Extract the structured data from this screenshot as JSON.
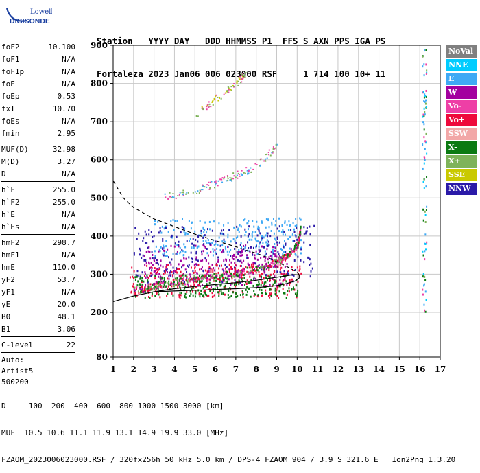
{
  "logo": {
    "line1": "Lowell",
    "line2": "DIGISONDE"
  },
  "header": {
    "row1": "Station   YYYY DAY   DDD HHMMSS P1  FFS S AXN PPS IGA PS",
    "row2": "Fortaleza 2023 Jan06 006 023000 RSF     1 714 100 10+ 11"
  },
  "params": {
    "group1": [
      {
        "key": "foF2",
        "value": "10.100"
      },
      {
        "key": "foF1",
        "value": "N/A"
      },
      {
        "key": "foF1p",
        "value": "N/A"
      },
      {
        "key": "foE",
        "value": "N/A"
      },
      {
        "key": "foEp",
        "value": "0.53"
      },
      {
        "key": "fxI",
        "value": "10.70"
      },
      {
        "key": "foEs",
        "value": "N/A"
      },
      {
        "key": "fmin",
        "value": "2.95"
      }
    ],
    "group2": [
      {
        "key": "MUF(D)",
        "value": "32.98"
      },
      {
        "key": "M(D)",
        "value": "3.27"
      },
      {
        "key": "D",
        "value": "N/A"
      }
    ],
    "group3": [
      {
        "key": "h`F",
        "value": "255.0"
      },
      {
        "key": "h`F2",
        "value": "255.0"
      },
      {
        "key": "h`E",
        "value": "N/A"
      },
      {
        "key": "h`Es",
        "value": "N/A"
      }
    ],
    "group4": [
      {
        "key": "hmF2",
        "value": "298.7"
      },
      {
        "key": "hmF1",
        "value": "N/A"
      },
      {
        "key": "hmE",
        "value": "110.0"
      },
      {
        "key": "yF2",
        "value": "53.7"
      },
      {
        "key": "yF1",
        "value": "N/A"
      },
      {
        "key": "yE",
        "value": "20.0"
      },
      {
        "key": "B0",
        "value": "48.1"
      },
      {
        "key": "B1",
        "value": "3.06"
      }
    ],
    "group5": [
      {
        "key": "C-level",
        "value": "22"
      }
    ],
    "auto": [
      "Auto:",
      "Artist5",
      "500200"
    ]
  },
  "legend": [
    {
      "label": "NoVal",
      "color": "#808080"
    },
    {
      "label": "NNE",
      "color": "#00ccff"
    },
    {
      "label": "E",
      "color": "#3fa9f5"
    },
    {
      "label": "W",
      "color": "#a3009f"
    },
    {
      "label": "Vo-",
      "color": "#ee3fa6"
    },
    {
      "label": "Vo+",
      "color": "#ee0a3c"
    },
    {
      "label": "SSW",
      "color": "#f2a7a7"
    },
    {
      "label": "X-",
      "color": "#0b7a12"
    },
    {
      "label": "X+",
      "color": "#7eb35a"
    },
    {
      "label": "SSE",
      "color": "#c9c900"
    },
    {
      "label": "NNW",
      "color": "#2a1aa8"
    }
  ],
  "footer": {
    "line1": "D     100  200  400  600  800 1000 1500 3000 [km]",
    "line2": "MUF  10.5 10.6 11.1 11.9 13.1 14.9 19.9 33.0 [MHz]",
    "line3": "FZAOM_2023006023000.RSF / 320fx256h 50 kHz 5.0 km / DPS-4 FZAOM 904 / 3.9 S 321.6 E   Ion2Png 1.3.20"
  },
  "chart_data": {
    "type": "scatter",
    "xlim": [
      1,
      17
    ],
    "ylim": [
      80,
      900
    ],
    "xticks": [
      "1",
      "2",
      "3",
      "4",
      "5",
      "6",
      "7",
      "8",
      "9",
      "10",
      "11",
      "12",
      "13",
      "14",
      "15",
      "16",
      "17"
    ],
    "yticks": [
      "80",
      "200",
      "300",
      "400",
      "500",
      "600",
      "700",
      "800",
      "900"
    ],
    "profile": [
      [
        10.1,
        298
      ],
      [
        10.0,
        305
      ],
      [
        9.5,
        320
      ],
      [
        9.0,
        333
      ],
      [
        8.5,
        345
      ],
      [
        8.0,
        355
      ],
      [
        7.5,
        363
      ],
      [
        7.0,
        372
      ],
      [
        6.5,
        380
      ],
      [
        6.0,
        388
      ],
      [
        5.0,
        405
      ],
      [
        4.0,
        425
      ],
      [
        3.0,
        445
      ],
      [
        2.0,
        475
      ],
      [
        1.5,
        500
      ],
      [
        1.0,
        545
      ]
    ],
    "trace": [
      [
        1.0,
        228
      ],
      [
        2.0,
        243
      ],
      [
        3.0,
        254
      ],
      [
        4.0,
        262
      ],
      [
        5.0,
        268
      ],
      [
        6.0,
        273
      ],
      [
        7.0,
        278
      ],
      [
        8.0,
        284
      ],
      [
        8.5,
        288
      ],
      [
        9.0,
        292
      ],
      [
        9.5,
        296
      ],
      [
        9.8,
        299
      ],
      [
        10.1,
        298
      ],
      [
        10.1,
        290
      ],
      [
        9.9,
        282
      ],
      [
        9.5,
        276
      ],
      [
        9.0,
        270
      ],
      [
        8.0,
        265
      ],
      [
        7.0,
        262
      ],
      [
        6.0,
        260
      ],
      [
        5.0,
        258
      ],
      [
        4.0,
        256
      ],
      [
        3.0,
        254
      ]
    ],
    "o_trace": [
      [
        2.0,
        260
      ],
      [
        3.0,
        270
      ],
      [
        4.0,
        280
      ],
      [
        5.0,
        290
      ],
      [
        6.0,
        297
      ],
      [
        7.0,
        305
      ],
      [
        8.0,
        316
      ],
      [
        9.0,
        334
      ],
      [
        9.5,
        350
      ],
      [
        10.0,
        380
      ],
      [
        10.15,
        420
      ]
    ],
    "second_hop": [
      [
        3.5,
        505
      ],
      [
        5.0,
        520
      ],
      [
        6.0,
        540
      ],
      [
        7.0,
        560
      ],
      [
        8.0,
        585
      ],
      [
        9.0,
        640
      ]
    ],
    "third_hop": [
      [
        5.0,
        720
      ],
      [
        6.0,
        760
      ],
      [
        7.0,
        800
      ],
      [
        7.5,
        830
      ]
    ],
    "scatter_clusters": [
      {
        "name": "E",
        "x": [
          3.0,
          10.2
        ],
        "y": [
          350,
          450
        ]
      },
      {
        "name": "W",
        "x": [
          2.5,
          9.5
        ],
        "y": [
          270,
          380
        ]
      },
      {
        "name": "NNW",
        "x": [
          2.0,
          10.8
        ],
        "y": [
          280,
          430
        ]
      },
      {
        "name": "Vo+",
        "x": [
          1.8,
          10.2
        ],
        "y": [
          240,
          330
        ]
      },
      {
        "name": "X-",
        "x": [
          2.0,
          10.0
        ],
        "y": [
          240,
          300
        ]
      }
    ]
  }
}
